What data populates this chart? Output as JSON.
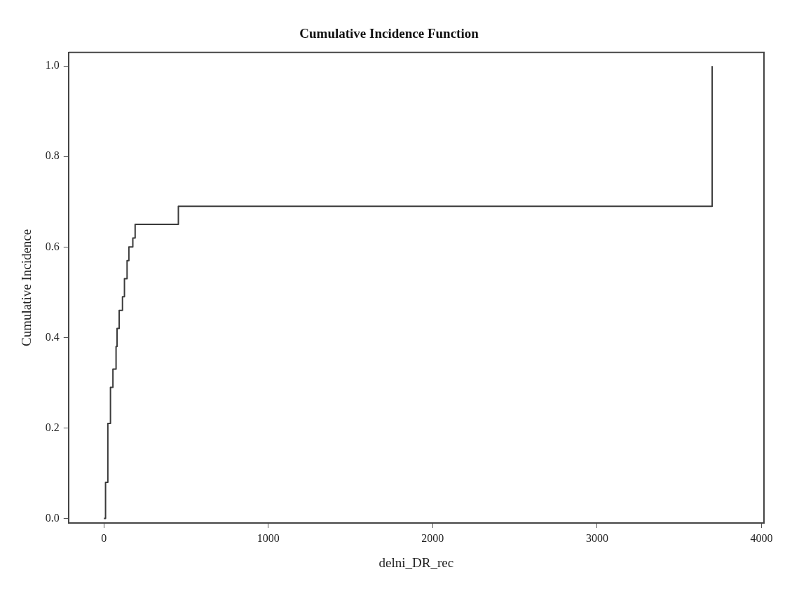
{
  "chart_data": {
    "type": "step",
    "title": "Cumulative Incidence Function",
    "xlabel": "delni_DR_rec",
    "ylabel": "Cumulative Incidence",
    "x": [
      0,
      10,
      24,
      40,
      55,
      74,
      80,
      93,
      113,
      125,
      141,
      152,
      176,
      190,
      453,
      3700
    ],
    "series": [
      {
        "color": "#3a3a3a",
        "values": [
          0,
          0.08,
          0.21,
          0.29,
          0.33,
          0.38,
          0.42,
          0.46,
          0.49,
          0.53,
          0.57,
          0.6,
          0.62,
          0.65,
          0.69,
          1.0
        ]
      }
    ],
    "xlim": [
      -215,
      4015
    ],
    "ylim": [
      -0.01,
      1.03
    ],
    "xticks": [
      0,
      1000,
      2000,
      3000,
      4000
    ],
    "yticks": [
      {
        "value": 0,
        "label": "0.0"
      },
      {
        "value": 0.2,
        "label": "0.2"
      },
      {
        "value": 0.4,
        "label": "0.4"
      },
      {
        "value": 0.6,
        "label": "0.6"
      },
      {
        "value": 0.8,
        "label": "0.8"
      },
      {
        "value": 1,
        "label": "1.0"
      }
    ],
    "grid": false,
    "legend": false,
    "marker": "none",
    "line_style": "solid"
  }
}
